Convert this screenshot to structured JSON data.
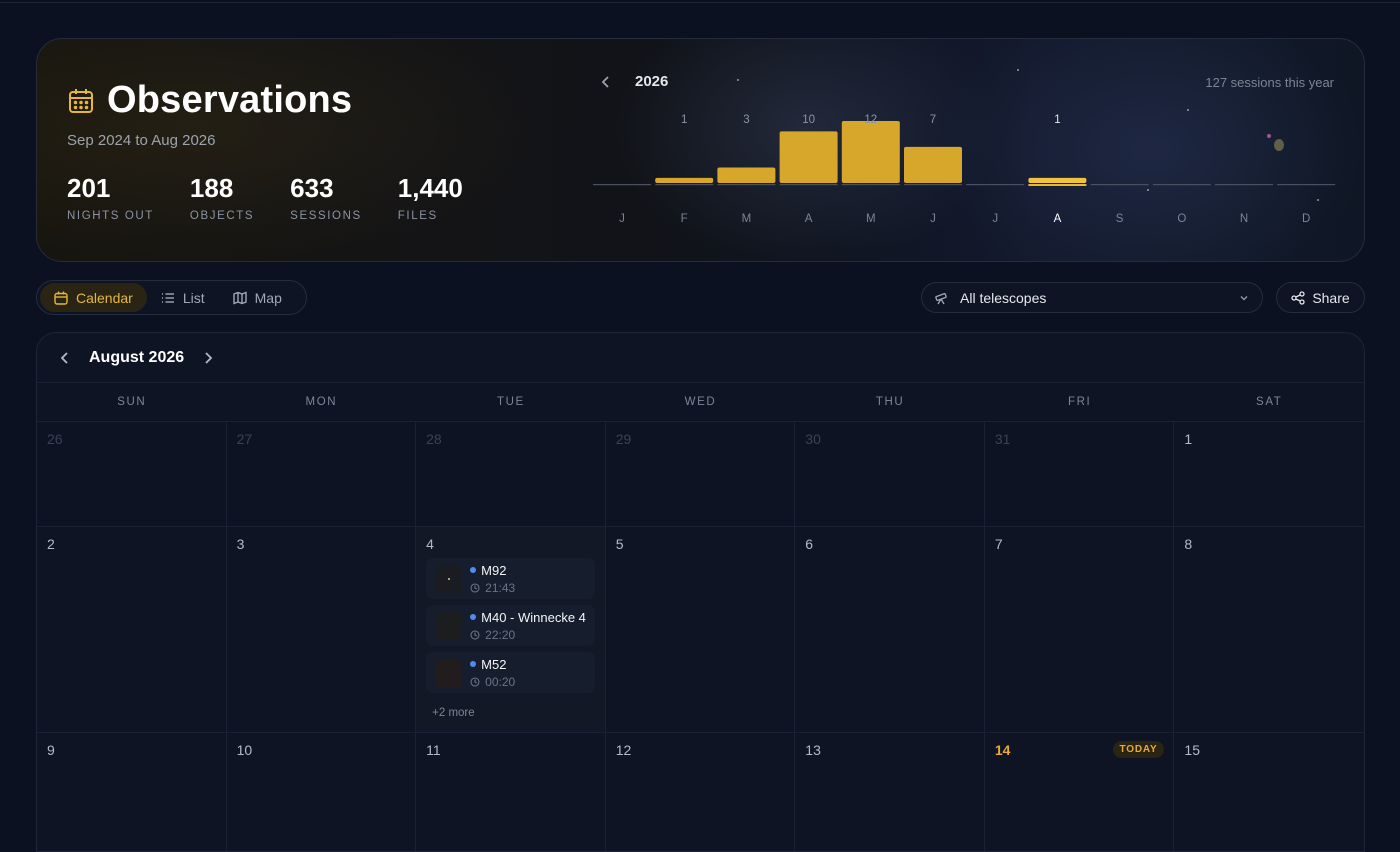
{
  "header": {
    "title": "Observations",
    "range": "Sep 2024 to Aug 2026",
    "stats": [
      {
        "value": "201",
        "label": "NIGHTS OUT"
      },
      {
        "value": "188",
        "label": "OBJECTS"
      },
      {
        "value": "633",
        "label": "SESSIONS"
      },
      {
        "value": "1,440",
        "label": "FILES"
      }
    ],
    "year": "2026",
    "sessions_this_year": "127 sessions this year",
    "accent": "#e6b73a"
  },
  "chart_data": {
    "type": "bar",
    "categories": [
      "J",
      "F",
      "M",
      "A",
      "M",
      "J",
      "J",
      "A",
      "S",
      "O",
      "N",
      "D"
    ],
    "values": [
      0,
      1,
      3,
      10,
      12,
      7,
      0,
      1,
      0,
      0,
      0,
      0
    ],
    "data_labels": [
      "",
      "1",
      "3",
      "10",
      "12",
      "7",
      "",
      "1",
      "",
      "",
      "",
      ""
    ],
    "highlight_index": 7,
    "ylim": [
      0,
      12
    ]
  },
  "toolbar": {
    "views": [
      {
        "label": "Calendar",
        "icon": "calendar-icon",
        "active": true
      },
      {
        "label": "List",
        "icon": "list-icon",
        "active": false
      },
      {
        "label": "Map",
        "icon": "map-icon",
        "active": false
      }
    ],
    "telescope_select": "All telescopes",
    "share_label": "Share"
  },
  "calendar": {
    "month": "August 2026",
    "weekdays": [
      "SUN",
      "MON",
      "TUE",
      "WED",
      "THU",
      "FRI",
      "SAT"
    ],
    "today_badge": "TODAY",
    "weeks": [
      [
        "26",
        "27",
        "28",
        "29",
        "30",
        "31",
        "1"
      ],
      [
        "2",
        "3",
        "4",
        "5",
        "6",
        "7",
        "8"
      ],
      [
        "9",
        "10",
        "11",
        "12",
        "13",
        "14",
        "15"
      ]
    ],
    "events_day_4": [
      {
        "name": "M92",
        "time": "21:43"
      },
      {
        "name": "M40 - Winnecke 4",
        "time": "22:20"
      },
      {
        "name": "M52",
        "time": "00:20"
      }
    ],
    "more_label": "+2 more"
  }
}
